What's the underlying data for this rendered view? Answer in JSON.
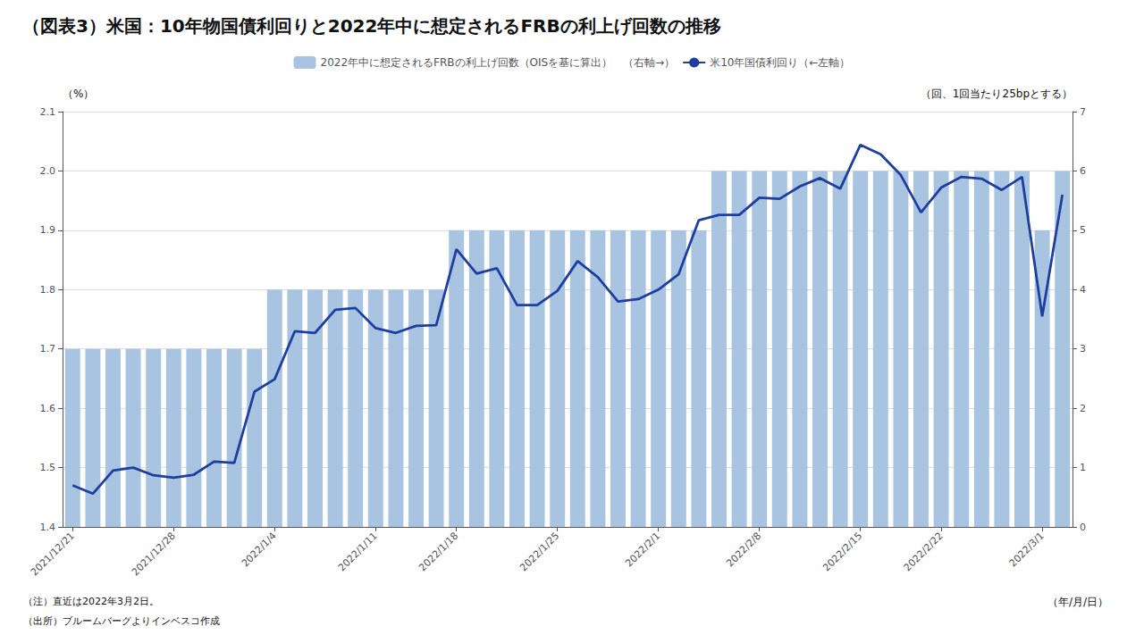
{
  "chart_data": {
    "type": "bar_line",
    "title": "（図表3）米国：10年物国債利回りと2022年中に想定されるFRBの利上げ回数の推移",
    "ylabel": "（%）",
    "y2label": "（回、1回当たり25bpとする）",
    "xlabel": "（年/月/日）",
    "annotations": [
      "（注）直近は2022年3月2日。",
      "（出所）ブルームバーグよりインベスコ作成"
    ],
    "categories": [
      "2021/12/21",
      null,
      null,
      null,
      null,
      "2021/12/28",
      null,
      null,
      null,
      null,
      "2022/1/4",
      null,
      null,
      null,
      null,
      "2022/1/11",
      null,
      null,
      null,
      "2022/1/18",
      null,
      null,
      null,
      null,
      "2022/1/25",
      null,
      null,
      null,
      null,
      "2022/2/1",
      null,
      null,
      null,
      null,
      "2022/2/8",
      null,
      null,
      null,
      null,
      "2022/2/15",
      null,
      null,
      null,
      "2022/2/22",
      null,
      null,
      null,
      null,
      "2022/3/1",
      null
    ],
    "series": [
      {
        "name": "2022年中に想定されるFRBの利上げ回数（OISを基に算出）　（右軸→）",
        "type": "bar",
        "axis": "y2",
        "color": "#a8c4e0",
        "values": [
          3,
          3,
          3,
          3,
          3,
          3,
          3,
          3,
          3,
          3,
          4,
          4,
          4,
          4,
          4,
          4,
          4,
          4,
          4,
          5,
          5,
          5,
          5,
          5,
          5,
          5,
          5,
          5,
          5,
          5,
          5,
          5,
          6,
          6,
          6,
          6,
          6,
          6,
          6,
          6,
          6,
          6,
          6,
          6,
          6,
          6,
          6,
          6,
          5,
          6
        ]
      },
      {
        "name": "米10年国債利回り（←左軸）",
        "type": "line",
        "axis": "y",
        "color": "#1e3fa0",
        "values": [
          1.47,
          1.456,
          1.495,
          1.5,
          1.487,
          1.483,
          1.488,
          1.51,
          1.508,
          1.628,
          1.649,
          1.73,
          1.727,
          1.766,
          1.769,
          1.735,
          1.727,
          1.739,
          1.74,
          1.868,
          1.827,
          1.836,
          1.774,
          1.774,
          1.798,
          1.848,
          1.821,
          1.78,
          1.784,
          1.8,
          1.826,
          1.917,
          1.926,
          1.926,
          1.955,
          1.953,
          1.974,
          1.988,
          1.97,
          2.044,
          2.028,
          1.993,
          1.93,
          1.972,
          1.99,
          1.987,
          1.968,
          1.99,
          1.755,
          1.96
        ]
      }
    ],
    "ylim": [
      1.4,
      2.1
    ],
    "yticks": [
      1.4,
      1.5,
      1.6,
      1.7,
      1.8,
      1.9,
      {
        "value": 2.0,
        "label": "2.0"
      },
      2.1
    ],
    "y2lim": [
      0,
      7
    ],
    "y2ticks": [
      0,
      1,
      2,
      3,
      4,
      5,
      6,
      7
    ],
    "grid": true,
    "legend": "top"
  }
}
